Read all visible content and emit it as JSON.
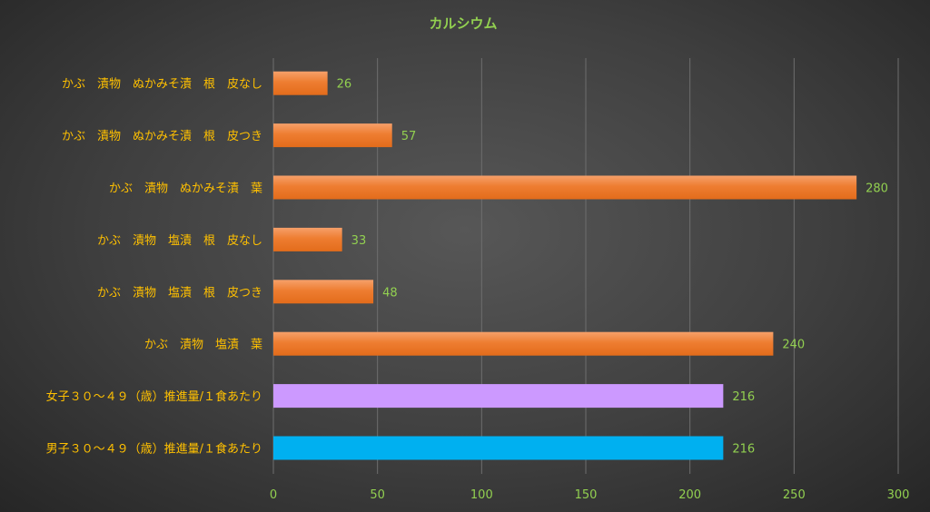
{
  "chart_data": {
    "type": "bar",
    "orientation": "horizontal",
    "title": "カルシウム",
    "categories": [
      "かぶ　漬物　ぬかみそ漬　根　皮なし",
      "かぶ　漬物　ぬかみそ漬　根　皮つき",
      "かぶ　漬物　ぬかみそ漬　葉",
      "かぶ　漬物　塩漬　根　皮なし",
      "かぶ　漬物　塩漬　根　皮つき",
      "かぶ　漬物　塩漬　葉",
      "女子３０～４９（歳）推進量/１食あたり",
      "男子３０～４９（歳）推進量/１食あたり"
    ],
    "values": [
      26,
      57,
      280,
      33,
      48,
      240,
      216,
      216
    ],
    "bar_colors": [
      "#ed7d31",
      "#ed7d31",
      "#ed7d31",
      "#ed7d31",
      "#ed7d31",
      "#ed7d31",
      "#cc99ff",
      "#00b0f0"
    ],
    "xlim": [
      0,
      300
    ],
    "x_ticks": [
      0,
      50,
      100,
      150,
      200,
      250,
      300
    ],
    "xlabel": "",
    "ylabel": "",
    "grid": true,
    "legend": "none",
    "colors": {
      "title": "#92d050",
      "category_labels": "#ffc000",
      "tick_labels": "#92d050",
      "value_labels": "#92d050",
      "gridlines": "#6e6e6e"
    }
  }
}
